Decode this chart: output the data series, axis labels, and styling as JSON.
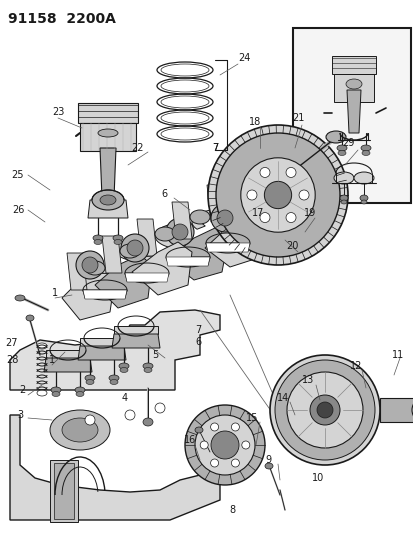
{
  "title": "91158  2200A",
  "bg_color": "#ffffff",
  "line_color": "#1a1a1a",
  "gray_light": "#d4d4d4",
  "gray_mid": "#b0b0b0",
  "gray_dark": "#888888",
  "title_fontsize": 10,
  "label_fontsize": 6.5,
  "fig_width": 4.14,
  "fig_height": 5.33,
  "dpi": 100
}
